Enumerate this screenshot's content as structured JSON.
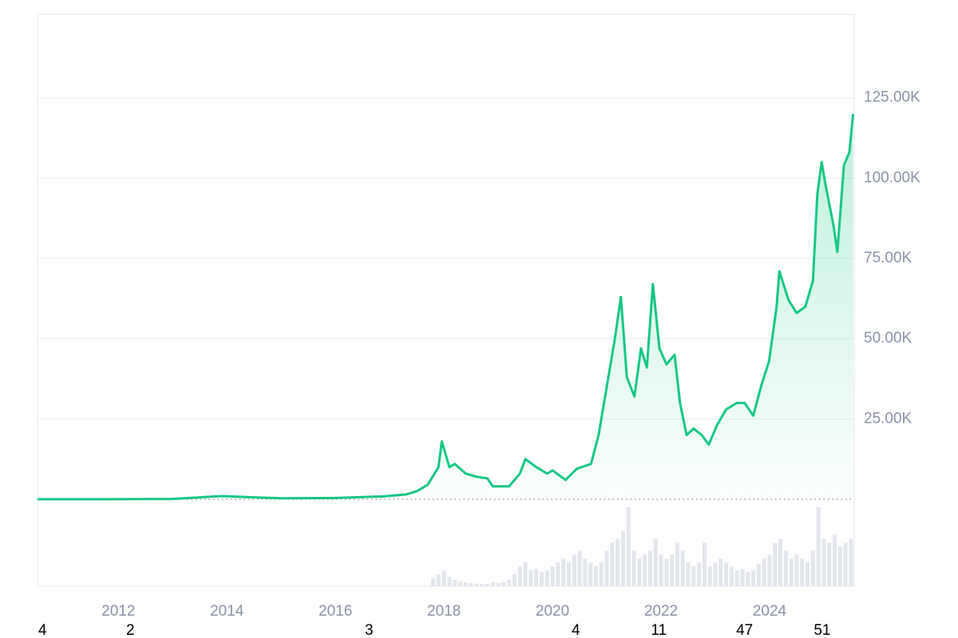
{
  "chart_data": {
    "type": "line",
    "x": [
      2010.51,
      2011.5,
      2013.0,
      2013.9,
      2014.5,
      2015.0,
      2016.0,
      2016.9,
      2017.3,
      2017.5,
      2017.7,
      2017.9,
      2017.96,
      2018.1,
      2018.2,
      2018.4,
      2018.6,
      2018.8,
      2018.9,
      2019.2,
      2019.4,
      2019.5,
      2019.7,
      2019.9,
      2020.0,
      2020.24,
      2020.45,
      2020.71,
      2020.85,
      2021.0,
      2021.15,
      2021.26,
      2021.37,
      2021.51,
      2021.63,
      2021.74,
      2021.85,
      2021.97,
      2022.1,
      2022.25,
      2022.35,
      2022.47,
      2022.6,
      2022.75,
      2022.88,
      2023.03,
      2023.2,
      2023.4,
      2023.54,
      2023.7,
      2023.84,
      2023.99,
      2024.13,
      2024.18,
      2024.35,
      2024.5,
      2024.66,
      2024.8,
      2024.88,
      2024.96,
      2025.03,
      2025.18,
      2025.25,
      2025.37,
      2025.47,
      2025.54
    ],
    "series": [
      {
        "color": "#16c784",
        "values": [
          10,
          10,
          100,
          1000,
          600,
          300,
          400,
          900,
          1500,
          2500,
          4500,
          10000,
          18000,
          10000,
          11000,
          8000,
          7000,
          6500,
          4000,
          4000,
          8000,
          12500,
          10000,
          8000,
          9000,
          6000,
          9500,
          11000,
          20000,
          35000,
          50000,
          63000,
          38000,
          32000,
          47000,
          41000,
          67000,
          47000,
          42000,
          45000,
          30000,
          20000,
          22000,
          20000,
          17000,
          23000,
          28000,
          30000,
          30000,
          26000,
          35000,
          43000,
          60000,
          71000,
          62000,
          58000,
          60000,
          68000,
          95000,
          105000,
          98000,
          85000,
          77000,
          104000,
          108000,
          120000
        ]
      }
    ],
    "xlim": [
      2010.51,
      2025.56
    ],
    "xticks": [
      2012,
      2014,
      2016,
      2018,
      2020,
      2022,
      2024
    ],
    "ylim": [
      0,
      151000
    ],
    "yticks": [
      {
        "value": 25000,
        "label": "25.00K"
      },
      {
        "value": 50000,
        "label": "50.00K"
      },
      {
        "value": 75000,
        "label": "75.00K"
      },
      {
        "value": 100000,
        "label": "100.00K"
      },
      {
        "value": 125000,
        "label": "125.00K"
      }
    ],
    "grid": true,
    "volume": {
      "color": "#e3e6ec",
      "x": [
        2017.8,
        2017.9,
        2018.0,
        2018.1,
        2018.2,
        2018.3,
        2018.4,
        2018.5,
        2018.6,
        2018.7,
        2018.8,
        2018.9,
        2019.0,
        2019.1,
        2019.2,
        2019.3,
        2019.4,
        2019.5,
        2019.6,
        2019.7,
        2019.8,
        2019.9,
        2020.0,
        2020.1,
        2020.2,
        2020.3,
        2020.4,
        2020.5,
        2020.6,
        2020.7,
        2020.8,
        2020.9,
        2021.0,
        2021.1,
        2021.2,
        2021.3,
        2021.4,
        2021.5,
        2021.6,
        2021.7,
        2021.8,
        2021.9,
        2022.0,
        2022.1,
        2022.2,
        2022.3,
        2022.4,
        2022.5,
        2022.6,
        2022.7,
        2022.8,
        2022.9,
        2023.0,
        2023.1,
        2023.2,
        2023.3,
        2023.4,
        2023.5,
        2023.6,
        2023.7,
        2023.8,
        2023.9,
        2024.0,
        2024.1,
        2024.2,
        2024.3,
        2024.4,
        2024.5,
        2024.6,
        2024.7,
        2024.8,
        2024.9,
        2025.0,
        2025.1,
        2025.2,
        2025.3,
        2025.4,
        2025.5
      ],
      "values": [
        10,
        15,
        20,
        12,
        8,
        6,
        5,
        4,
        3,
        3,
        3,
        5,
        4,
        5,
        8,
        15,
        25,
        30,
        20,
        22,
        18,
        20,
        25,
        30,
        35,
        30,
        40,
        45,
        35,
        30,
        25,
        30,
        45,
        55,
        60,
        70,
        100,
        45,
        35,
        40,
        45,
        60,
        40,
        35,
        40,
        55,
        45,
        30,
        25,
        30,
        55,
        25,
        30,
        35,
        30,
        25,
        20,
        22,
        18,
        20,
        28,
        35,
        40,
        55,
        60,
        45,
        35,
        40,
        35,
        30,
        45,
        100,
        60,
        55,
        65,
        50,
        55,
        60
      ]
    },
    "y2lim": [
      0,
      100
    ],
    "annotations": [
      {
        "x": 2010.6,
        "label": "4"
      },
      {
        "x": 2012.22,
        "label": "2"
      },
      {
        "x": 2016.62,
        "label": "3"
      },
      {
        "x": 2020.43,
        "label": "4"
      },
      {
        "x": 2021.96,
        "label": "11"
      },
      {
        "x": 2023.54,
        "label": "47"
      },
      {
        "x": 2024.97,
        "label": "51"
      }
    ]
  }
}
